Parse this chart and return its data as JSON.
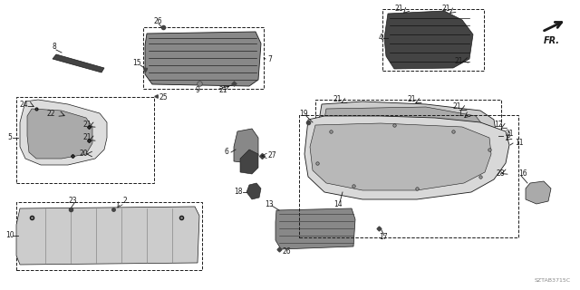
{
  "diagram_code": "SZTAB3715C",
  "bg_color": "#ffffff",
  "line_color": "#1a1a1a",
  "fig_width": 6.4,
  "fig_height": 3.2,
  "dpi": 100,
  "fr_label": "FR."
}
